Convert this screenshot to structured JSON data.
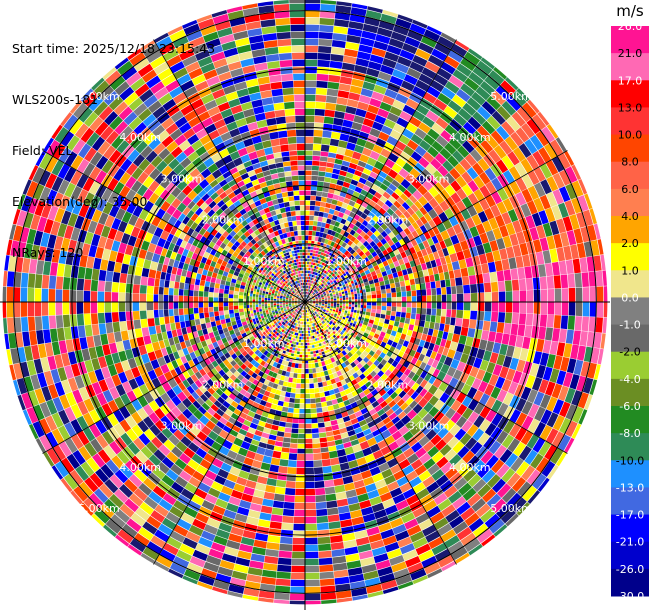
{
  "header": {
    "start_time": "Start time: 2025/12/18 23:15:43",
    "site": "WLS200s-181",
    "field": "Field: VEL",
    "elevation": "Elevation(deg): 35.00",
    "nrays": "NRays: 120"
  },
  "ppi": {
    "n_rays": 120,
    "range_rings_km": [
      1,
      2,
      3,
      4,
      5
    ],
    "ring_labels": [
      "1.00km",
      "2.00km",
      "3.00km",
      "4.00km",
      "5.00km"
    ],
    "max_range_km": 5.2
  },
  "colorbar": {
    "unit": "m/s",
    "levels": [
      "26.0",
      "21.0",
      "17.0",
      "13.0",
      "10.0",
      "8.0",
      "6.0",
      "4.0",
      "2.0",
      "1.0",
      "0.0",
      "-1.0",
      "-2.0",
      "-4.0",
      "-6.0",
      "-8.0",
      "-10.0",
      "-13.0",
      "-17.0",
      "-21.0",
      "-26.0",
      "-30.0"
    ],
    "colors": [
      "#ff1493",
      "#ff69b4",
      "#ff0000",
      "#ff3333",
      "#ff4500",
      "#ff6347",
      "#ff7f50",
      "#ffa500",
      "#ffff00",
      "#f0e68c",
      "#808080",
      "#696969",
      "#9acd32",
      "#6b8e23",
      "#228b22",
      "#2e8b57",
      "#1e90ff",
      "#4169e1",
      "#0000ff",
      "#0000cd",
      "#00008b",
      "#191970"
    ]
  }
}
